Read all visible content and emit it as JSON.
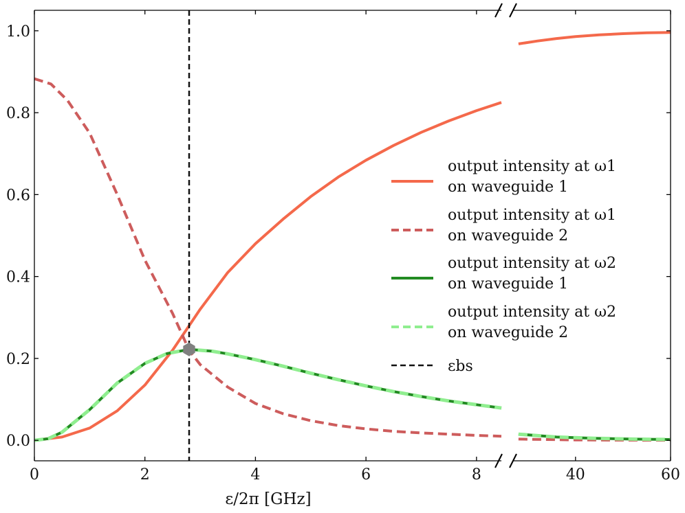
{
  "chart_data": {
    "type": "line",
    "title": "",
    "xlabel": "ε/2π [GHz]",
    "ylabel": "",
    "x_axis": {
      "broken": true,
      "segments": [
        {
          "range": [
            0,
            8.45
          ],
          "ticks": [
            0,
            2,
            4,
            6,
            8
          ],
          "tick_labels": [
            "0",
            "2",
            "4",
            "6",
            "8"
          ]
        },
        {
          "range": [
            27,
            60
          ],
          "ticks": [
            40,
            60
          ],
          "tick_labels": [
            "40",
            "60"
          ]
        }
      ]
    },
    "ylim": [
      -0.05,
      1.05
    ],
    "y_ticks": [
      0.0,
      0.2,
      0.4,
      0.6,
      0.8,
      1.0
    ],
    "y_tick_labels": [
      "0.0",
      "0.2",
      "0.4",
      "0.6",
      "0.8",
      "1.0"
    ],
    "series": [
      {
        "name": "output intensity at ω1 on waveguide 1",
        "legend_lines": [
          "output intensity at ω1",
          "on waveguide 1"
        ],
        "color": "#f4694b",
        "dash": "solid",
        "x": [
          0,
          0.5,
          1,
          1.5,
          2,
          2.5,
          2.8,
          3,
          3.5,
          4,
          4.5,
          5,
          5.5,
          6,
          6.5,
          7,
          7.5,
          8,
          8.45,
          28,
          32,
          36,
          40,
          45,
          50,
          55,
          60
        ],
        "values": [
          0.0,
          0.008,
          0.03,
          0.072,
          0.135,
          0.22,
          0.28,
          0.32,
          0.41,
          0.48,
          0.54,
          0.595,
          0.643,
          0.684,
          0.72,
          0.752,
          0.78,
          0.805,
          0.825,
          0.968,
          0.975,
          0.981,
          0.986,
          0.99,
          0.993,
          0.995,
          0.996
        ]
      },
      {
        "name": "output intensity at ω1 on waveguide 2",
        "legend_lines": [
          "output intensity at ω1",
          "on waveguide 2"
        ],
        "color": "#cd5c5c",
        "dash": "dashed",
        "x": [
          0,
          0.3,
          0.6,
          1,
          1.5,
          2,
          2.5,
          2.8,
          3,
          3.5,
          4,
          4.5,
          5,
          5.5,
          6,
          6.5,
          7,
          7.5,
          8,
          8.45,
          28,
          40,
          50,
          60
        ],
        "values": [
          0.883,
          0.87,
          0.83,
          0.75,
          0.6,
          0.44,
          0.31,
          0.22,
          0.185,
          0.13,
          0.09,
          0.065,
          0.048,
          0.036,
          0.028,
          0.022,
          0.018,
          0.015,
          0.012,
          0.01,
          0.003,
          0.001,
          0.0005,
          0.0003
        ]
      },
      {
        "name": "output intensity at ω2 on waveguide 1",
        "legend_lines": [
          "output intensity at ω2",
          "on waveguide 1"
        ],
        "color": "#228b22",
        "dash": "solid",
        "x": [
          0,
          0.25,
          0.5,
          1,
          1.5,
          2,
          2.4,
          2.8,
          3.2,
          3.5,
          4,
          4.5,
          5,
          5.5,
          6,
          6.5,
          7,
          7.5,
          8,
          8.45,
          28,
          36,
          44,
          52,
          60
        ],
        "values": [
          0.0,
          0.004,
          0.02,
          0.075,
          0.14,
          0.188,
          0.212,
          0.222,
          0.218,
          0.211,
          0.197,
          0.181,
          0.164,
          0.148,
          0.133,
          0.119,
          0.107,
          0.096,
          0.087,
          0.079,
          0.015,
          0.008,
          0.005,
          0.003,
          0.002
        ]
      },
      {
        "name": "output intensity at ω2 on waveguide 2",
        "legend_lines": [
          "output intensity at ω2",
          "on waveguide 2"
        ],
        "color": "#90ee90",
        "dash": "dashed",
        "x": [
          0,
          0.25,
          0.5,
          1,
          1.5,
          2,
          2.4,
          2.8,
          3.2,
          3.5,
          4,
          4.5,
          5,
          5.5,
          6,
          6.5,
          7,
          7.5,
          8,
          8.45,
          28,
          36,
          44,
          52,
          60
        ],
        "values": [
          0.0,
          0.004,
          0.02,
          0.075,
          0.14,
          0.188,
          0.212,
          0.222,
          0.218,
          0.211,
          0.197,
          0.181,
          0.164,
          0.148,
          0.133,
          0.119,
          0.107,
          0.096,
          0.087,
          0.079,
          0.015,
          0.008,
          0.005,
          0.003,
          0.002
        ]
      }
    ],
    "vertical_line": {
      "name": "ε_bs",
      "legend_label": "εbs",
      "x": 2.8,
      "color": "#111111",
      "dash": "dashed"
    },
    "marker": {
      "shape": "hexagon",
      "x": 2.8,
      "y": 0.222,
      "color": "#808080"
    },
    "legend": {
      "position": "center-right"
    }
  }
}
